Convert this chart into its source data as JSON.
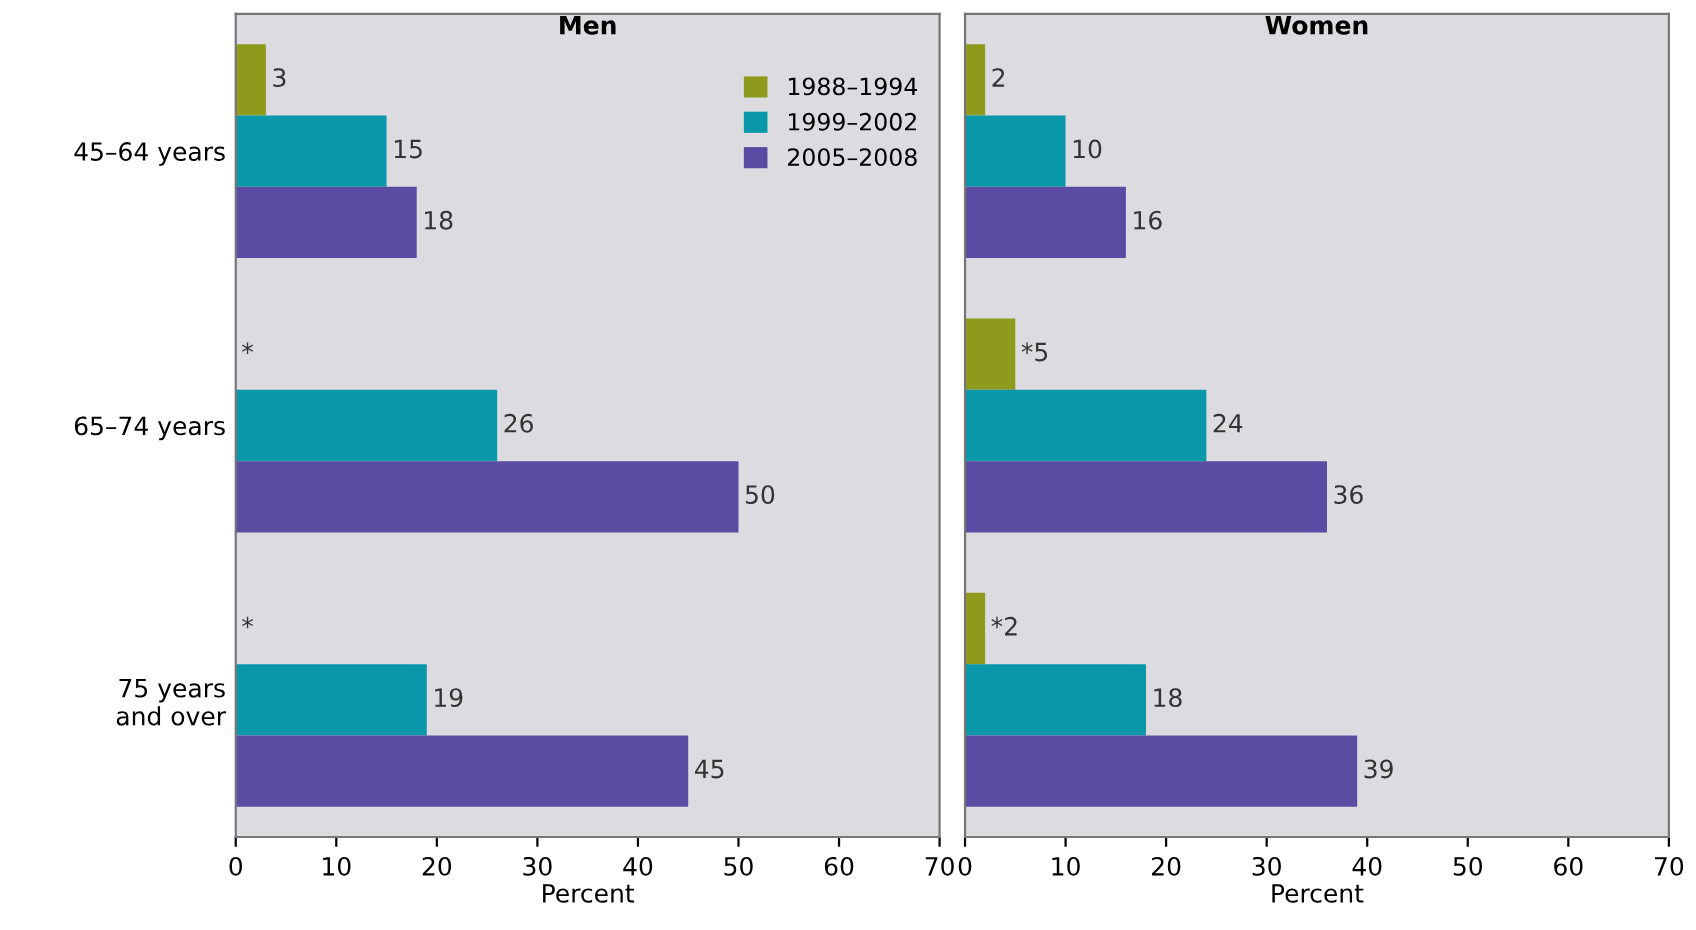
{
  "chart_data": [
    {
      "type": "bar",
      "orientation": "horizontal",
      "title": "Men",
      "xlabel": "Percent",
      "categories": [
        "45–64 years",
        "65–74 years",
        "75 years\nand over"
      ],
      "xlim": [
        0,
        70
      ],
      "xticks": [
        0,
        10,
        20,
        30,
        40,
        50,
        60,
        70
      ],
      "grid": false,
      "legend": "top right",
      "series": [
        {
          "name": "1988–1994",
          "color": "#8e9a1c",
          "values": [
            3,
            null,
            null
          ],
          "value_labels": [
            "3",
            "*",
            "*"
          ]
        },
        {
          "name": "1999–2002",
          "color": "#0898aa",
          "values": [
            15,
            26,
            19
          ],
          "value_labels": [
            "15",
            "26",
            "19"
          ]
        },
        {
          "name": "2005–2008",
          "color": "#5a4ca2",
          "values": [
            18,
            50,
            45
          ],
          "value_labels": [
            "18",
            "50",
            "45"
          ]
        }
      ]
    },
    {
      "type": "bar",
      "orientation": "horizontal",
      "title": "Women",
      "xlabel": "Percent",
      "categories": [
        null,
        null,
        null
      ],
      "xlim": [
        0,
        70
      ],
      "xticks": [
        0,
        10,
        20,
        30,
        40,
        50,
        60,
        70
      ],
      "grid": false,
      "legend": false,
      "series": [
        {
          "color": "#8e9a1c",
          "values": [
            2,
            5,
            2
          ],
          "value_labels": [
            "2",
            "*5",
            "*2"
          ]
        },
        {
          "color": "#0898aa",
          "values": [
            10,
            24,
            18
          ],
          "value_labels": [
            "10",
            "24",
            "18"
          ]
        },
        {
          "color": "#5a4ca2",
          "values": [
            16,
            36,
            39
          ],
          "value_labels": [
            "16",
            "36",
            "39"
          ]
        }
      ]
    }
  ]
}
